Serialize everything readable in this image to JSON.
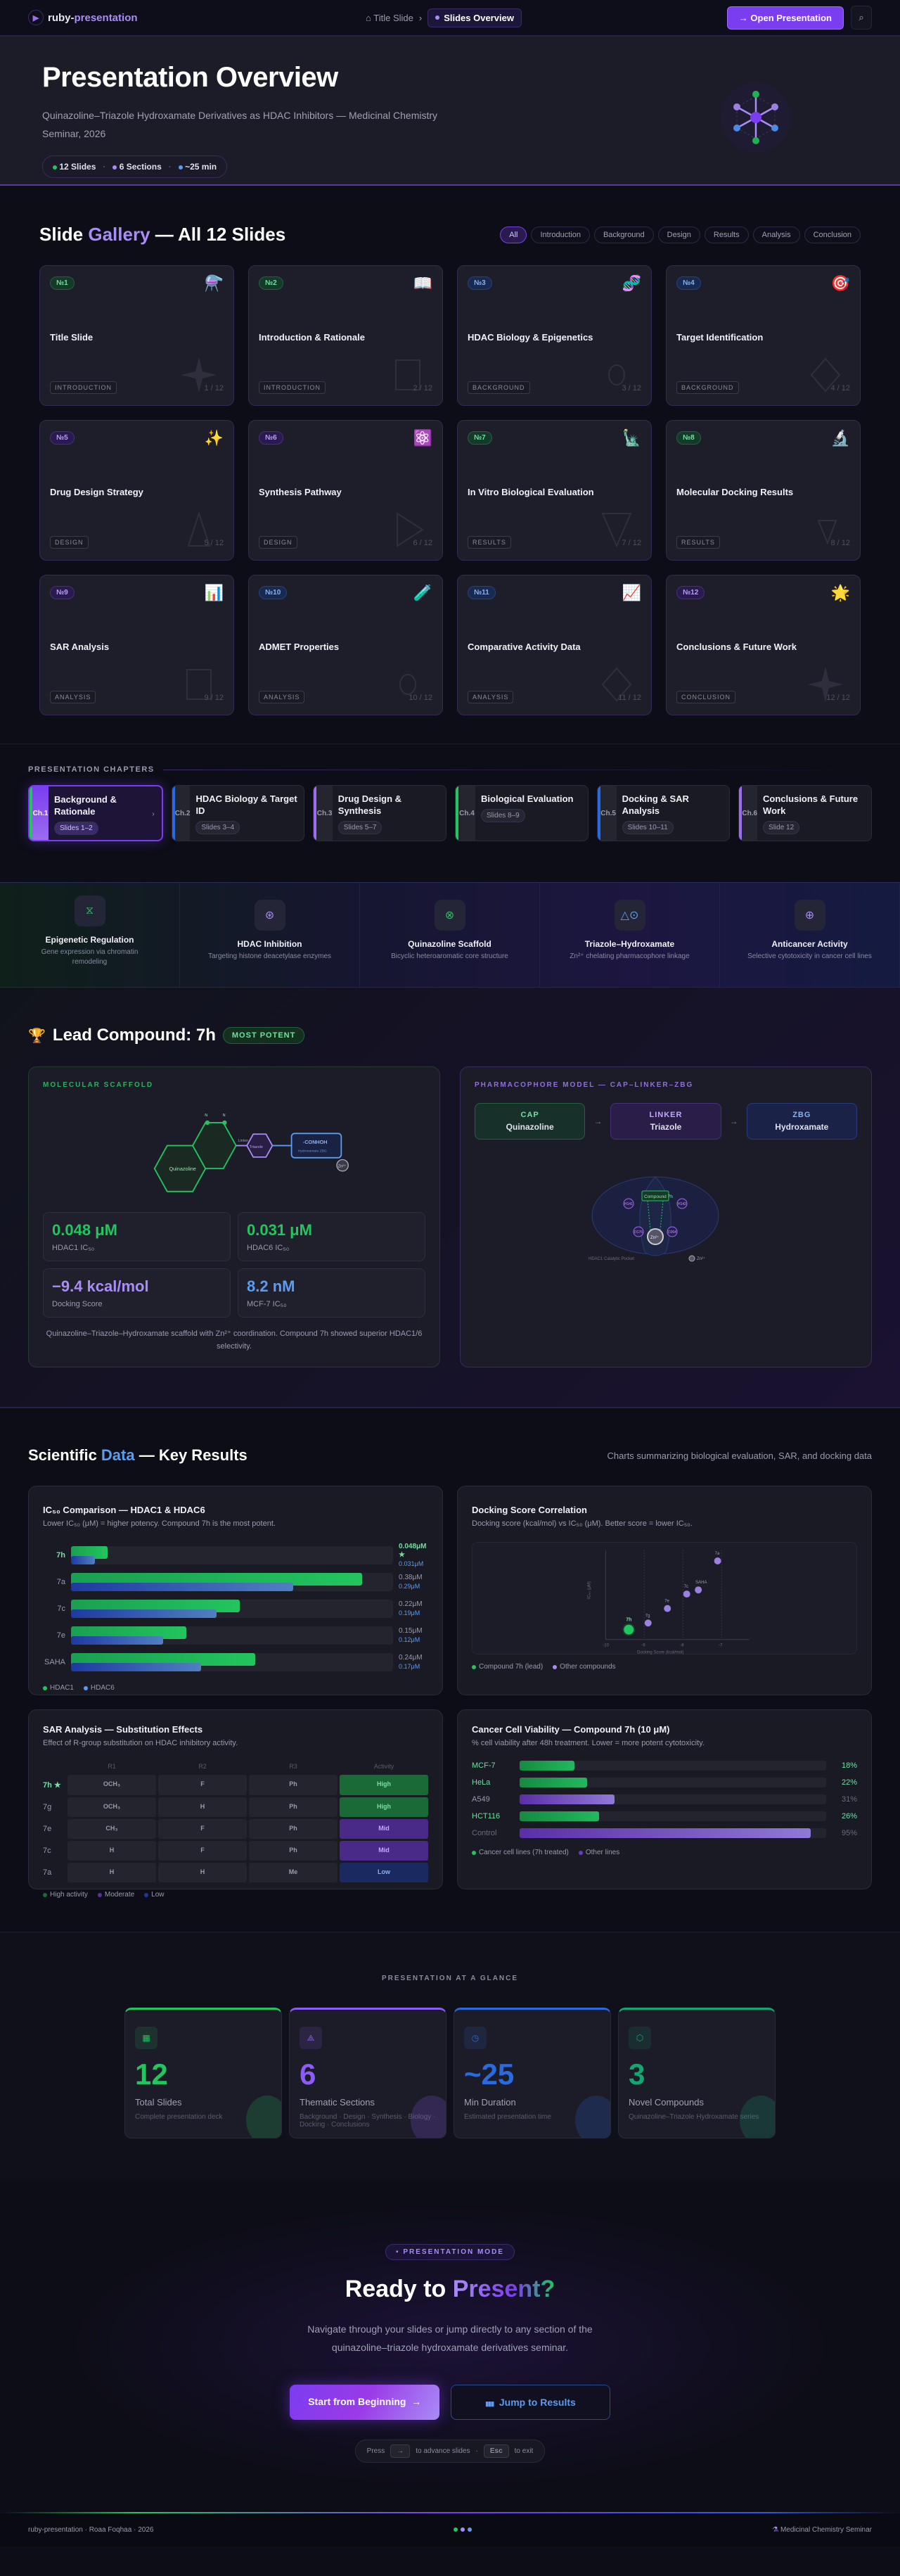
{
  "nav": {
    "brand_prefix": "ruby-",
    "brand_suffix": "presentation",
    "breadcrumb_home": "Title Slide",
    "breadcrumb_sep": "›",
    "breadcrumb_current": "Slides Overview",
    "open_button": "Open Presentation",
    "open_icon": "→",
    "search_icon": "⌕"
  },
  "hero": {
    "title": "Presentation Overview",
    "subtitle": "Quinazoline–Triazole Hydroxamate Derivatives as HDAC Inhibitors — Medicinal Chemistry Seminar, 2026",
    "stats": [
      {
        "label": "12 Slides",
        "color": "#22c55e"
      },
      {
        "label": "6 Sections",
        "color": "#a98cf6"
      },
      {
        "label": "~25 min",
        "color": "#5b9cf0"
      }
    ]
  },
  "gallery": {
    "title_a": "Slide ",
    "title_b": "Gallery",
    "title_c": " — All 12 Slides",
    "filters": [
      "All",
      "Introduction",
      "Background",
      "Design",
      "Results",
      "Analysis",
      "Conclusion"
    ],
    "active_filter": "All",
    "slides": [
      {
        "num": "№1",
        "title": "Title Slide",
        "tag": "INTRODUCTION",
        "pos": "1 / 12",
        "emoji": "⚗️",
        "badge": "green",
        "shape": "star"
      },
      {
        "num": "№2",
        "title": "Introduction & Rationale",
        "tag": "INTRODUCTION",
        "pos": "2 / 12",
        "emoji": "📖",
        "badge": "green",
        "shape": "square"
      },
      {
        "num": "№3",
        "title": "HDAC Biology & Epigenetics",
        "tag": "BACKGROUND",
        "pos": "3 / 12",
        "emoji": "🧬",
        "badge": "blue",
        "shape": "circle"
      },
      {
        "num": "№4",
        "title": "Target Identification",
        "tag": "BACKGROUND",
        "pos": "4 / 12",
        "emoji": "🎯",
        "badge": "blue",
        "shape": "diamond"
      },
      {
        "num": "№5",
        "title": "Drug Design Strategy",
        "tag": "DESIGN",
        "pos": "5 / 12",
        "emoji": "✨",
        "badge": "purple",
        "shape": "triangle"
      },
      {
        "num": "№6",
        "title": "Synthesis Pathway",
        "tag": "DESIGN",
        "pos": "6 / 12",
        "emoji": "⚛️",
        "badge": "purple",
        "shape": "play"
      },
      {
        "num": "№7",
        "title": "In Vitro Biological Evaluation",
        "tag": "RESULTS",
        "pos": "7 / 12",
        "emoji": "🗽",
        "badge": "green",
        "shape": "tri-down"
      },
      {
        "num": "№8",
        "title": "Molecular Docking Results",
        "tag": "RESULTS",
        "pos": "8 / 12",
        "emoji": "🔬",
        "badge": "green",
        "shape": "tri-down-sm"
      },
      {
        "num": "№9",
        "title": "SAR Analysis",
        "tag": "ANALYSIS",
        "pos": "9 / 12",
        "emoji": "📊",
        "badge": "purple",
        "shape": "square"
      },
      {
        "num": "№10",
        "title": "ADMET Properties",
        "tag": "ANALYSIS",
        "pos": "10 / 12",
        "emoji": "🧪",
        "badge": "blue",
        "shape": "circle"
      },
      {
        "num": "№11",
        "title": "Comparative Activity Data",
        "tag": "ANALYSIS",
        "pos": "11 / 12",
        "emoji": "📈",
        "badge": "blue",
        "shape": "diamond"
      },
      {
        "num": "№12",
        "title": "Conclusions & Future Work",
        "tag": "CONCLUSION",
        "pos": "12 / 12",
        "emoji": "🌟",
        "badge": "purple",
        "shape": "star"
      }
    ]
  },
  "chapters": {
    "label": "PRESENTATION CHAPTERS",
    "items": [
      {
        "ch": "Ch.1",
        "title": "Background & Rationale",
        "slides": "Slides 1–2",
        "color": "#22c55e",
        "active": true
      },
      {
        "ch": "Ch.2",
        "title": "HDAC Biology & Target ID",
        "slides": "Slides 3–4",
        "color": "#2a6ae0"
      },
      {
        "ch": "Ch.3",
        "title": "Drug Design & Synthesis",
        "slides": "Slides 5–7",
        "color": "#9b6cf0"
      },
      {
        "ch": "Ch.4",
        "title": "Biological Evaluation",
        "slides": "Slides 8–9",
        "color": "#22c55e"
      },
      {
        "ch": "Ch.5",
        "title": "Docking & SAR Analysis",
        "slides": "Slides 10–11",
        "color": "#2a6ae0"
      },
      {
        "ch": "Ch.6",
        "title": "Conclusions & Future Work",
        "slides": "Slide 12",
        "color": "#9b6cf0"
      }
    ]
  },
  "themes": [
    {
      "title": "Epigenetic Regulation",
      "desc": "Gene expression via chromatin remodeling",
      "icon": "⧖",
      "color": "#22c55e"
    },
    {
      "title": "HDAC Inhibition",
      "desc": "Targeting histone deacetylase enzymes",
      "icon": "⊛",
      "color": "#a98cf6"
    },
    {
      "title": "Quinazoline Scaffold",
      "desc": "Bicyclic heteroaromatic core structure",
      "icon": "⊗",
      "color": "#22c55e"
    },
    {
      "title": "Triazole–Hydroxamate",
      "desc": "Zn²⁺ chelating pharmacophore linkage",
      "icon": "△⊙",
      "color": "#5b9cf0"
    },
    {
      "title": "Anticancer Activity",
      "desc": "Selective cytotoxicity in cancer cell lines",
      "icon": "⊕",
      "color": "#a98cf6"
    }
  ],
  "lead": {
    "trophy": "🏆",
    "title": "Lead Compound: 7h",
    "badge": "MOST POTENT",
    "scaffold_label": "MOLECULAR SCAFFOLD",
    "scaffold": {
      "core": "Quinazoline",
      "linker": "Linker",
      "triazole": "Triazole",
      "zbg_title": "-CONHOH",
      "zbg_sub": "Hydroxamate ZBG",
      "zn": "Zn²⁺",
      "n": "N"
    },
    "metrics": [
      {
        "value": "0.048 μM",
        "label": "HDAC1 IC₅₀",
        "color": "#22c55e"
      },
      {
        "value": "0.031 μM",
        "label": "HDAC6 IC₅₀",
        "color": "#22c55e"
      },
      {
        "value": "−9.4 kcal/mol",
        "label": "Docking Score",
        "color": "#a98cf6"
      },
      {
        "value": "8.2 nM",
        "label": "MCF-7 IC₅₀",
        "color": "#5b9cf0"
      }
    ],
    "note": "Quinazoline–Triazole–Hydroxamate scaffold with Zn²⁺ coordination. Compound 7h showed superior HDAC1/6 selectivity.",
    "pharm_label": "PHARMACOPHORE MODEL — CAP–LINKER–ZBG",
    "pharm": [
      {
        "k": "CAP",
        "v": "Quinazoline"
      },
      {
        "k": "LINKER",
        "v": "Triazole"
      },
      {
        "k": "ZBG",
        "v": "Hydroxamate"
      }
    ],
    "pocket": {
      "compound": "Compound 7h",
      "residues": [
        "H141",
        "H142",
        "D176",
        "D264"
      ],
      "zn": "Zn²⁺",
      "caption": "HDAC1 Catalytic Pocket",
      "legend": "Zn²⁺"
    }
  },
  "science": {
    "title_a": "Scientific ",
    "title_b": "Data",
    "title_c": " — Key Results",
    "subtitle": "Charts summarizing biological evaluation, SAR, and docking data"
  },
  "chart_data": [
    {
      "type": "bar",
      "title": "IC₅₀ Comparison — HDAC1 & HDAC6",
      "subtitle": "Lower IC₅₀ (μM) = higher potency. Compound 7h is the most potent.",
      "categories": [
        "7h",
        "7a",
        "7c",
        "7e",
        "SAHA"
      ],
      "series": [
        {
          "name": "HDAC1",
          "values": [
            0.048,
            0.38,
            0.22,
            0.15,
            0.24
          ],
          "labels": [
            "0.048μM ★",
            "0.38μM",
            "0.22μM",
            "0.15μM",
            "0.24μM"
          ]
        },
        {
          "name": "HDAC6",
          "values": [
            0.031,
            0.29,
            0.19,
            0.12,
            0.17
          ],
          "labels": [
            "0.031μM",
            "0.29μM",
            "0.19μM",
            "0.12μM",
            "0.17μM"
          ]
        }
      ],
      "legend": [
        "HDAC1",
        "HDAC6"
      ]
    },
    {
      "type": "scatter",
      "title": "Docking Score Correlation",
      "subtitle": "Docking score (kcal/mol) vs IC₅₀ (μM). Better score = lower IC₅₀.",
      "xlabel": "Docking Score (kcal/mol)",
      "ylabel": "IC₅₀ (μM)",
      "xlim": [
        -10,
        -6.5
      ],
      "x_ticks": [
        "-10",
        "-9",
        "-8",
        "-7"
      ],
      "points": [
        {
          "label": "7h",
          "x": -9.4,
          "y": 0.048,
          "lead": true
        },
        {
          "label": "7g",
          "x": -8.9,
          "y": 0.08
        },
        {
          "label": "7e",
          "x": -8.4,
          "y": 0.15
        },
        {
          "label": "7c",
          "x": -7.9,
          "y": 0.22
        },
        {
          "label": "SAHA",
          "x": -7.6,
          "y": 0.24
        },
        {
          "label": "7a",
          "x": -7.1,
          "y": 0.38
        }
      ],
      "legend": [
        "Compound 7h (lead)",
        "Other compounds"
      ]
    },
    {
      "type": "table",
      "title": "SAR Analysis — Substitution Effects",
      "subtitle": "Effect of R-group substitution on HDAC inhibitory activity.",
      "columns": [
        "",
        "R1",
        "R2",
        "R3",
        "Activity"
      ],
      "rows": [
        [
          "7h ★",
          "OCH₃",
          "F",
          "Ph",
          "High"
        ],
        [
          "7g",
          "OCH₃",
          "H",
          "Ph",
          "High"
        ],
        [
          "7e",
          "CH₃",
          "F",
          "Ph",
          "Mid"
        ],
        [
          "7c",
          "H",
          "F",
          "Ph",
          "Mid"
        ],
        [
          "7a",
          "H",
          "H",
          "Me",
          "Low"
        ]
      ],
      "legend": [
        "High activity",
        "Moderate",
        "Low"
      ]
    },
    {
      "type": "bar",
      "title": "Cancer Cell Viability — Compound 7h (10 μM)",
      "subtitle": "% cell viability after 48h treatment. Lower = more potent cytotoxicity.",
      "categories": [
        "MCF-7",
        "HeLa",
        "A549",
        "HCT116",
        "Control"
      ],
      "values": [
        18,
        22,
        31,
        26,
        95
      ],
      "labels": [
        "18%",
        "22%",
        "31%",
        "26%",
        "95%"
      ],
      "groups": [
        "cancer",
        "cancer",
        "other",
        "cancer",
        "other"
      ],
      "legend": [
        "Cancer cell lines (7h treated)",
        "Other lines"
      ],
      "ylim": [
        0,
        100
      ]
    }
  ],
  "glance": {
    "label": "PRESENTATION AT A GLANCE",
    "cards": [
      {
        "num": "12",
        "title": "Total Slides",
        "desc": "Complete presentation deck",
        "color": "#22c55e",
        "icon": "▦"
      },
      {
        "num": "6",
        "title": "Thematic Sections",
        "desc": "Background · Design · Synthesis · Biology · Docking · Conclusions",
        "color": "#8b5cf6",
        "icon": "⟁"
      },
      {
        "num": "~25",
        "title": "Min Duration",
        "desc": "Estimated presentation time",
        "color": "#2a6ae0",
        "icon": "◷"
      },
      {
        "num": "3",
        "title": "Novel Compounds",
        "desc": "Quinazoline–Triazole Hydroxamate series",
        "color": "#10a870",
        "icon": "⬡"
      }
    ]
  },
  "cta": {
    "pill": "PRESENTATION MODE",
    "title_a": "Ready to ",
    "title_b": "Present?",
    "desc": "Navigate through your slides or jump directly to any section of the quinazoline–triazole hydroxamate derivatives seminar.",
    "start": "Start from Beginning",
    "start_icon": "→",
    "jump": "Jump to Results",
    "jump_icon": "▮▮▮",
    "hint_press": "Press",
    "hint_key1": "→",
    "hint_mid": "to advance slides",
    "hint_dot": "·",
    "hint_key2": "Esc",
    "hint_end": "to exit"
  },
  "footer": {
    "left": "ruby-presentation · Roaa Foqhaa · 2026",
    "right": "Medicinal Chemistry Seminar",
    "right_icon": "⚗"
  }
}
